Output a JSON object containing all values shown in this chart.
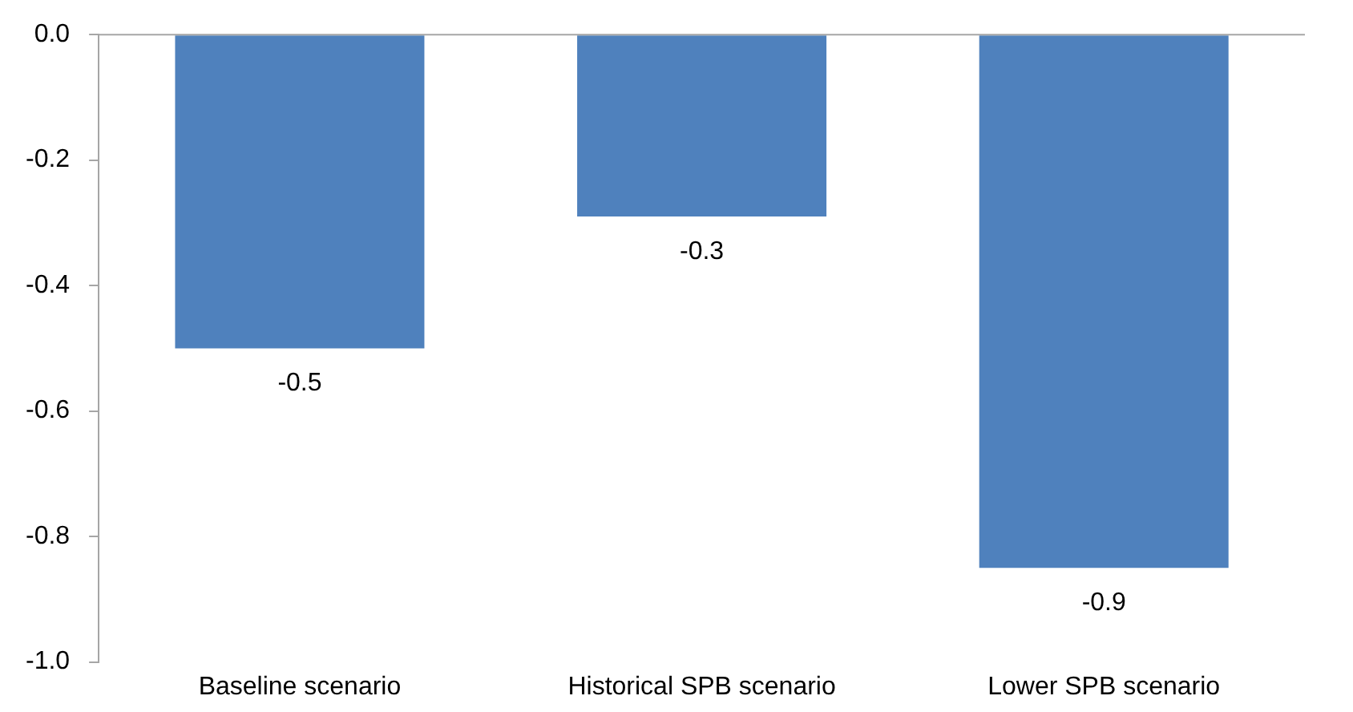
{
  "chart_data": {
    "type": "bar",
    "categories": [
      "Baseline scenario",
      "Historical SPB scenario",
      "Lower SPB scenario"
    ],
    "values": [
      -0.5,
      -0.29,
      -0.85
    ],
    "value_labels": [
      "-0.5",
      "-0.3",
      "-0.9"
    ],
    "color": "#4f81bd",
    "ylim": [
      -1.0,
      0.0
    ],
    "yticks": [
      {
        "value": 0,
        "label": "0.0"
      },
      {
        "value": -0.2,
        "label": "-0.2"
      },
      {
        "value": -0.4,
        "label": "-0.4"
      },
      {
        "value": -0.6,
        "label": "-0.6"
      },
      {
        "value": -0.8,
        "label": "-0.8"
      },
      {
        "value": -1.0,
        "label": "-1.0"
      }
    ],
    "grid": false,
    "legend": false
  }
}
